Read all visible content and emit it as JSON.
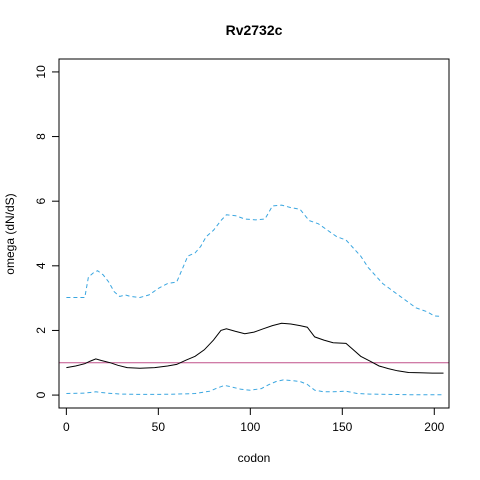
{
  "chart_data": {
    "type": "line",
    "title": "Rv2732c",
    "xlabel": "codon",
    "ylabel": "omega (dN/dS)",
    "xlim": [
      -4,
      208
    ],
    "ylim": [
      -0.4,
      10.4
    ],
    "xticks": [
      0,
      50,
      100,
      150,
      200
    ],
    "yticks": [
      0,
      2,
      4,
      6,
      8,
      10
    ],
    "grid": false,
    "reference_line": {
      "y": 1,
      "color": "#c0508a"
    },
    "series": [
      {
        "style": "solid",
        "color": "#000000",
        "points": [
          [
            0,
            0.85
          ],
          [
            5,
            0.9
          ],
          [
            10,
            0.97
          ],
          [
            13,
            1.05
          ],
          [
            16,
            1.12
          ],
          [
            19,
            1.07
          ],
          [
            24,
            1.0
          ],
          [
            28,
            0.92
          ],
          [
            33,
            0.85
          ],
          [
            40,
            0.83
          ],
          [
            48,
            0.85
          ],
          [
            55,
            0.9
          ],
          [
            60,
            0.95
          ],
          [
            65,
            1.08
          ],
          [
            70,
            1.2
          ],
          [
            75,
            1.4
          ],
          [
            80,
            1.7
          ],
          [
            84,
            2.0
          ],
          [
            87,
            2.05
          ],
          [
            92,
            1.97
          ],
          [
            97,
            1.9
          ],
          [
            102,
            1.95
          ],
          [
            107,
            2.05
          ],
          [
            112,
            2.15
          ],
          [
            117,
            2.22
          ],
          [
            122,
            2.2
          ],
          [
            127,
            2.15
          ],
          [
            131,
            2.1
          ],
          [
            135,
            1.8
          ],
          [
            140,
            1.7
          ],
          [
            145,
            1.62
          ],
          [
            152,
            1.6
          ],
          [
            156,
            1.4
          ],
          [
            160,
            1.2
          ],
          [
            165,
            1.05
          ],
          [
            170,
            0.9
          ],
          [
            175,
            0.82
          ],
          [
            180,
            0.75
          ],
          [
            186,
            0.7
          ],
          [
            192,
            0.69
          ],
          [
            199,
            0.68
          ],
          [
            205,
            0.68
          ]
        ]
      },
      {
        "style": "dashed",
        "color": "#3aa6e0",
        "points": [
          [
            0,
            3.02
          ],
          [
            10,
            3.02
          ],
          [
            12,
            3.65
          ],
          [
            15,
            3.8
          ],
          [
            17,
            3.85
          ],
          [
            20,
            3.72
          ],
          [
            23,
            3.5
          ],
          [
            26,
            3.2
          ],
          [
            29,
            3.05
          ],
          [
            32,
            3.1
          ],
          [
            35,
            3.05
          ],
          [
            40,
            3.02
          ],
          [
            45,
            3.1
          ],
          [
            50,
            3.3
          ],
          [
            55,
            3.45
          ],
          [
            60,
            3.5
          ],
          [
            63,
            3.9
          ],
          [
            66,
            4.3
          ],
          [
            70,
            4.4
          ],
          [
            73,
            4.6
          ],
          [
            76,
            4.9
          ],
          [
            80,
            5.1
          ],
          [
            84,
            5.4
          ],
          [
            87,
            5.58
          ],
          [
            92,
            5.55
          ],
          [
            97,
            5.45
          ],
          [
            103,
            5.42
          ],
          [
            108,
            5.45
          ],
          [
            112,
            5.85
          ],
          [
            117,
            5.88
          ],
          [
            122,
            5.8
          ],
          [
            127,
            5.75
          ],
          [
            132,
            5.4
          ],
          [
            137,
            5.3
          ],
          [
            142,
            5.1
          ],
          [
            147,
            4.9
          ],
          [
            152,
            4.8
          ],
          [
            156,
            4.55
          ],
          [
            160,
            4.3
          ],
          [
            164,
            3.95
          ],
          [
            168,
            3.7
          ],
          [
            172,
            3.45
          ],
          [
            178,
            3.2
          ],
          [
            184,
            2.95
          ],
          [
            190,
            2.7
          ],
          [
            196,
            2.58
          ],
          [
            200,
            2.45
          ],
          [
            204,
            2.43
          ]
        ]
      },
      {
        "style": "dashed",
        "color": "#3aa6e0",
        "points": [
          [
            0,
            0.05
          ],
          [
            10,
            0.06
          ],
          [
            16,
            0.1
          ],
          [
            22,
            0.06
          ],
          [
            30,
            0.03
          ],
          [
            40,
            0.02
          ],
          [
            50,
            0.02
          ],
          [
            60,
            0.03
          ],
          [
            70,
            0.05
          ],
          [
            78,
            0.12
          ],
          [
            82,
            0.22
          ],
          [
            86,
            0.3
          ],
          [
            90,
            0.25
          ],
          [
            95,
            0.18
          ],
          [
            100,
            0.15
          ],
          [
            106,
            0.2
          ],
          [
            110,
            0.32
          ],
          [
            114,
            0.42
          ],
          [
            118,
            0.47
          ],
          [
            122,
            0.45
          ],
          [
            127,
            0.42
          ],
          [
            131,
            0.33
          ],
          [
            135,
            0.15
          ],
          [
            140,
            0.1
          ],
          [
            145,
            0.1
          ],
          [
            152,
            0.12
          ],
          [
            158,
            0.05
          ],
          [
            165,
            0.03
          ],
          [
            175,
            0.02
          ],
          [
            190,
            0.01
          ],
          [
            205,
            0.01
          ]
        ]
      }
    ]
  }
}
